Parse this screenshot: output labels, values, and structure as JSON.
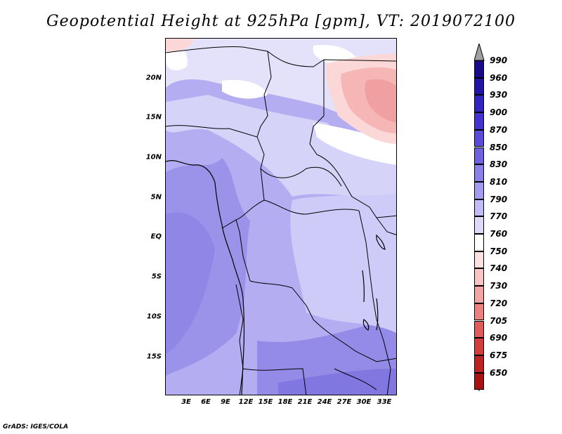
{
  "title": "Geopotential Height at 925hPa [gpm], VT: 2019072100",
  "credit": "GrADS: IGES/COLA",
  "map": {
    "lat_labels": [
      "20N",
      "15N",
      "10N",
      "5N",
      "EQ",
      "5S",
      "10S",
      "15S"
    ],
    "lon_labels": [
      "3E",
      "6E",
      "9E",
      "12E",
      "15E",
      "18E",
      "21E",
      "24E",
      "27E",
      "30E",
      "33E"
    ]
  },
  "colorbar": {
    "labels": [
      "990",
      "960",
      "930",
      "900",
      "870",
      "850",
      "830",
      "810",
      "790",
      "770",
      "760",
      "750",
      "740",
      "730",
      "720",
      "705",
      "690",
      "675",
      "650"
    ],
    "colors": [
      "#1a0a8c",
      "#2414a6",
      "#3323bf",
      "#4433cc",
      "#5a4bd8",
      "#6f62e0",
      "#8a80e8",
      "#a39cf0",
      "#c1bcf6",
      "#dddaf9",
      "#ffffff",
      "#fde0e0",
      "#f9c4c4",
      "#f3a4a4",
      "#eb8282",
      "#e05c5c",
      "#d23d3d",
      "#be2323",
      "#a81212"
    ],
    "top_arrow_color": "#a0a0a0",
    "bottom_arrow_color": "#a01010"
  }
}
